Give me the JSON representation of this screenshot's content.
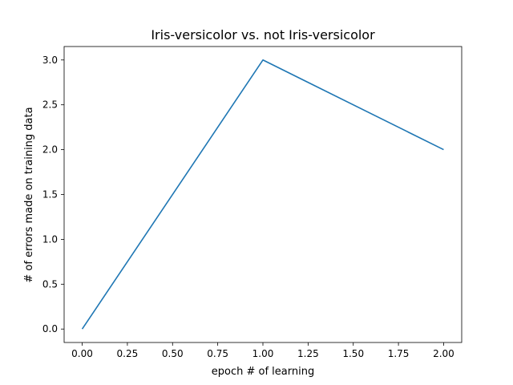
{
  "chart_data": {
    "type": "line",
    "title": "Iris-versicolor vs. not Iris-versicolor",
    "xlabel": "epoch # of learning",
    "ylabel": "# of errors made on training data",
    "xlim": [
      -0.1,
      2.1
    ],
    "ylim": [
      -0.15,
      3.15
    ],
    "xticks": [
      0.0,
      0.25,
      0.5,
      0.75,
      1.0,
      1.25,
      1.5,
      1.75,
      2.0
    ],
    "xtick_labels": [
      "0.00",
      "0.25",
      "0.50",
      "0.75",
      "1.00",
      "1.25",
      "1.50",
      "1.75",
      "2.00"
    ],
    "yticks": [
      0.0,
      0.5,
      1.0,
      1.5,
      2.0,
      2.5,
      3.0
    ],
    "ytick_labels": [
      "0.0",
      "0.5",
      "1.0",
      "1.5",
      "2.0",
      "2.5",
      "3.0"
    ],
    "grid": false,
    "series": [
      {
        "x": [
          0,
          1,
          2
        ],
        "values": [
          0,
          3,
          2
        ],
        "color": "#1f77b4"
      }
    ]
  }
}
